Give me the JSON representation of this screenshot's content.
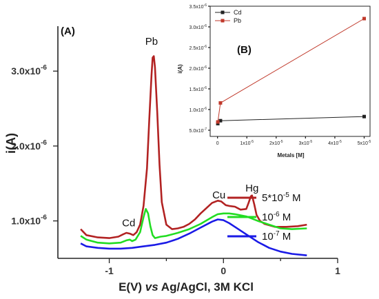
{
  "chart_data": [
    {
      "panel": "(A)",
      "type": "line",
      "xlabel_parts": [
        "E(V) ",
        "vs",
        " Ag/AgCl, 3M KCl"
      ],
      "ylabel": "i(A)",
      "xlim": [
        -1.45,
        1.0
      ],
      "ylim": [
        5e-07,
        3.6e-06
      ],
      "x_ticks": [
        -1,
        0,
        1
      ],
      "x_tick_labels": [
        "-1",
        "0",
        "1"
      ],
      "y_ticks": [
        1e-06,
        2e-06,
        3e-06
      ],
      "y_tick_labels": [
        {
          "mant": "1.0x10",
          "exp": "-6"
        },
        {
          "mant": "2.0x10",
          "exp": "-6"
        },
        {
          "mant": "3.0x10",
          "exp": "-6"
        }
      ],
      "annotations": [
        {
          "text": "Cd",
          "x": -0.83,
          "y": 9.3e-07
        },
        {
          "text": "Pb",
          "x": -0.63,
          "y": 3.35e-06
        },
        {
          "text": "Cu",
          "x": -0.04,
          "y": 1.3e-06
        },
        {
          "text": "Hg",
          "x": 0.25,
          "y": 1.39e-06
        }
      ],
      "legend_position": "right",
      "series": [
        {
          "name": "5*10",
          "name_exp": "-5",
          "name_unit": " M",
          "color": "#b22222",
          "x": [
            -1.25,
            -1.2,
            -1.1,
            -1.0,
            -0.92,
            -0.88,
            -0.85,
            -0.82,
            -0.79,
            -0.76,
            -0.73,
            -0.7,
            -0.67,
            -0.65,
            -0.63,
            -0.62,
            -0.61,
            -0.6,
            -0.58,
            -0.56,
            -0.54,
            -0.5,
            -0.45,
            -0.4,
            -0.35,
            -0.3,
            -0.25,
            -0.2,
            -0.15,
            -0.1,
            -0.05,
            -0.02,
            0.02,
            0.05,
            0.1,
            0.15,
            0.2,
            0.22,
            0.24,
            0.25,
            0.27,
            0.29,
            0.32,
            0.36,
            0.45,
            0.55,
            0.65,
            0.73
          ],
          "y": [
            8.9e-07,
            8.1e-07,
            7.8e-07,
            7.7e-07,
            7.9e-07,
            8.2e-07,
            8.4e-07,
            8.3e-07,
            8.1e-07,
            8.5e-07,
            9.5e-07,
            1.2e-06,
            1.7e-06,
            2.35e-06,
            2.95e-06,
            3.18e-06,
            3.2e-06,
            3.05e-06,
            2.45e-06,
            1.75e-06,
            1.25e-06,
            9.5e-07,
            8.9e-07,
            9e-07,
            9.2e-07,
            9.6e-07,
            1.02e-06,
            1.1e-06,
            1.17e-06,
            1.24e-06,
            1.27e-06,
            1.26e-06,
            1.21e-06,
            1.2e-06,
            1.19e-06,
            1.15e-06,
            1.16e-06,
            1.24e-06,
            1.33e-06,
            1.34e-06,
            1.22e-06,
            1.08e-06,
            1e-06,
            9.6e-07,
            9.2e-07,
            9.2e-07,
            9.3e-07,
            9.5e-07
          ]
        },
        {
          "name": "10",
          "name_exp": "-6",
          "name_unit": " M",
          "color": "#22dd22",
          "x": [
            -1.25,
            -1.2,
            -1.1,
            -1.0,
            -0.9,
            -0.85,
            -0.82,
            -0.8,
            -0.77,
            -0.73,
            -0.7,
            -0.68,
            -0.66,
            -0.64,
            -0.62,
            -0.6,
            -0.55,
            -0.5,
            -0.4,
            -0.3,
            -0.2,
            -0.1,
            -0.05,
            0.0,
            0.05,
            0.1,
            0.2,
            0.3,
            0.4,
            0.5,
            0.6,
            0.73
          ],
          "y": [
            8e-07,
            7.5e-07,
            7.1e-07,
            7e-07,
            7.1e-07,
            7.4e-07,
            7.5e-07,
            7.3e-07,
            7.5e-07,
            8.5e-07,
            1.05e-06,
            1.16e-06,
            1.1e-06,
            9.3e-07,
            8.1e-07,
            7.7e-07,
            7.9e-07,
            8e-07,
            8.4e-07,
            8.9e-07,
            9.6e-07,
            1.05e-06,
            1.09e-06,
            1.1e-06,
            1.1e-06,
            1.09e-06,
            1.06e-06,
            1e-06,
            9.5e-07,
            9e-07,
            8.9e-07,
            9e-07
          ]
        },
        {
          "name": "10",
          "name_exp": "-7",
          "name_unit": " M",
          "color": "#1a1ae6",
          "x": [
            -1.25,
            -1.2,
            -1.1,
            -1.0,
            -0.9,
            -0.8,
            -0.7,
            -0.6,
            -0.5,
            -0.4,
            -0.3,
            -0.2,
            -0.1,
            -0.05,
            0.0,
            0.05,
            0.1,
            0.2,
            0.3,
            0.4,
            0.5,
            0.6,
            0.73
          ],
          "y": [
            7e-07,
            6.6e-07,
            6.4e-07,
            6.3e-07,
            6.3e-07,
            6.4e-07,
            6.6e-07,
            6.8e-07,
            7.1e-07,
            7.6e-07,
            8.3e-07,
            9.1e-07,
            9.9e-07,
            1.02e-06,
            1.01e-06,
            9.7e-07,
            9.2e-07,
            8.2e-07,
            7.2e-07,
            6.4e-07,
            5.9e-07,
            5.6e-07,
            5.4e-07
          ]
        }
      ]
    },
    {
      "panel": "(B)",
      "type": "line",
      "xlabel": "Metals [M]",
      "ylabel": "i(A)",
      "xlim": [
        -2.5e-06,
        5.2e-05
      ],
      "ylim": [
        3.5e-07,
        3.5e-06
      ],
      "x_ticks": [
        0,
        1e-05,
        2e-05,
        3e-05,
        4e-05,
        5e-05
      ],
      "x_tick_labels": [
        {
          "mant": "0",
          "exp": ""
        },
        {
          "mant": "1x10",
          "exp": "-5"
        },
        {
          "mant": "2x10",
          "exp": "-5"
        },
        {
          "mant": "3x10",
          "exp": "-5"
        },
        {
          "mant": "4x10",
          "exp": "-5"
        },
        {
          "mant": "5x10",
          "exp": "-5"
        }
      ],
      "y_ticks": [
        5e-07,
        1e-06,
        1.5e-06,
        2e-06,
        2.5e-06,
        3e-06,
        3.5e-06
      ],
      "y_tick_labels": [
        {
          "mant": "5.0x10",
          "exp": "-7"
        },
        {
          "mant": "1.0x10",
          "exp": "-6"
        },
        {
          "mant": "1.5x10",
          "exp": "-6"
        },
        {
          "mant": "2.0x10",
          "exp": "-6"
        },
        {
          "mant": "2.5x10",
          "exp": "-6"
        },
        {
          "mant": "3.0x10",
          "exp": "-6"
        },
        {
          "mant": "3.5x10",
          "exp": "-6"
        }
      ],
      "legend_position": "top-left",
      "series": [
        {
          "name": "Cd",
          "color": "#222222",
          "marker": "square",
          "x": [
            1e-07,
            1e-06,
            5e-05
          ],
          "y": [
            6.6e-07,
            7.3e-07,
            8.3e-07
          ]
        },
        {
          "name": "Pb",
          "color": "#c0392b",
          "marker": "square",
          "x": [
            1e-07,
            1e-06,
            5e-05
          ],
          "y": [
            7e-07,
            1.16e-06,
            3.2e-06
          ]
        }
      ]
    }
  ]
}
